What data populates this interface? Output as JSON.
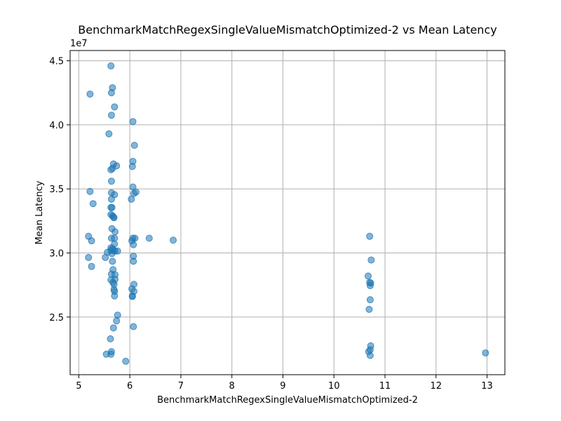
{
  "chart_data": {
    "type": "scatter",
    "title": "BenchmarkMatchRegexSingleValueMismatchOptimized-2 vs Mean Latency",
    "xlabel": "BenchmarkMatchRegexSingleValueMismatchOptimized-2",
    "ylabel": "Mean Latency",
    "y_offset_label": "1e7",
    "xlim": [
      4.83,
      13.35
    ],
    "ylim": [
      20500000,
      45800000
    ],
    "x_ticks": [
      5,
      6,
      7,
      8,
      9,
      10,
      11,
      12,
      13
    ],
    "x_tick_labels": [
      "5",
      "6",
      "7",
      "8",
      "9",
      "10",
      "11",
      "12",
      "13"
    ],
    "y_ticks": [
      25000000,
      30000000,
      35000000,
      40000000,
      45000000
    ],
    "y_tick_labels": [
      "2.5",
      "3.0",
      "3.5",
      "4.0",
      "4.5"
    ],
    "grid": true,
    "marker_color": "#1f77b4",
    "marker_alpha": 0.55,
    "points": [
      [
        5.63,
        44600000
      ],
      [
        5.66,
        42900000
      ],
      [
        5.22,
        42400000
      ],
      [
        5.64,
        42500000
      ],
      [
        5.7,
        41400000
      ],
      [
        5.64,
        40750000
      ],
      [
        6.06,
        40250000
      ],
      [
        5.59,
        39300000
      ],
      [
        6.09,
        38400000
      ],
      [
        5.68,
        36950000
      ],
      [
        6.06,
        37150000
      ],
      [
        5.74,
        36800000
      ],
      [
        6.05,
        36750000
      ],
      [
        5.66,
        36600000
      ],
      [
        5.63,
        36500000
      ],
      [
        5.64,
        35600000
      ],
      [
        6.06,
        35150000
      ],
      [
        5.22,
        34800000
      ],
      [
        6.12,
        34750000
      ],
      [
        5.64,
        34700000
      ],
      [
        5.7,
        34550000
      ],
      [
        6.08,
        34650000
      ],
      [
        6.03,
        34200000
      ],
      [
        5.64,
        34200000
      ],
      [
        5.28,
        33850000
      ],
      [
        5.63,
        33550000
      ],
      [
        5.65,
        33550000
      ],
      [
        5.63,
        33000000
      ],
      [
        5.66,
        32900000
      ],
      [
        5.68,
        32800000
      ],
      [
        5.69,
        32750000
      ],
      [
        5.65,
        31900000
      ],
      [
        5.71,
        31650000
      ],
      [
        5.19,
        31300000
      ],
      [
        5.64,
        31150000
      ],
      [
        6.06,
        31150000
      ],
      [
        6.1,
        31150000
      ],
      [
        6.38,
        31150000
      ],
      [
        6.85,
        31000000
      ],
      [
        5.25,
        30950000
      ],
      [
        5.7,
        31150000
      ],
      [
        6.04,
        30950000
      ],
      [
        6.07,
        30650000
      ],
      [
        5.7,
        30700000
      ],
      [
        5.63,
        30400000
      ],
      [
        5.66,
        30350000
      ],
      [
        5.63,
        30200000
      ],
      [
        5.56,
        30050000
      ],
      [
        5.68,
        30200000
      ],
      [
        5.71,
        30150000
      ],
      [
        5.76,
        30150000
      ],
      [
        5.65,
        29950000
      ],
      [
        6.07,
        29750000
      ],
      [
        5.52,
        29650000
      ],
      [
        5.19,
        29650000
      ],
      [
        5.66,
        29350000
      ],
      [
        6.07,
        29350000
      ],
      [
        5.25,
        28950000
      ],
      [
        5.67,
        28700000
      ],
      [
        5.64,
        28350000
      ],
      [
        5.71,
        28300000
      ],
      [
        5.63,
        27900000
      ],
      [
        5.71,
        27950000
      ],
      [
        5.67,
        27700000
      ],
      [
        5.69,
        27550000
      ],
      [
        6.08,
        27550000
      ],
      [
        6.04,
        27200000
      ],
      [
        5.69,
        27150000
      ],
      [
        5.7,
        27000000
      ],
      [
        6.08,
        27000000
      ],
      [
        6.05,
        26650000
      ],
      [
        5.7,
        26650000
      ],
      [
        6.05,
        26600000
      ],
      [
        5.76,
        25150000
      ],
      [
        5.74,
        24700000
      ],
      [
        5.68,
        24150000
      ],
      [
        6.07,
        24250000
      ],
      [
        5.62,
        23300000
      ],
      [
        5.64,
        22300000
      ],
      [
        5.54,
        22100000
      ],
      [
        5.63,
        22100000
      ],
      [
        5.92,
        21550000
      ],
      [
        10.7,
        31300000
      ],
      [
        10.73,
        29450000
      ],
      [
        10.67,
        28200000
      ],
      [
        10.7,
        27700000
      ],
      [
        10.72,
        27650000
      ],
      [
        10.71,
        27450000
      ],
      [
        10.71,
        26350000
      ],
      [
        10.69,
        25600000
      ],
      [
        10.72,
        22750000
      ],
      [
        10.68,
        22300000
      ],
      [
        10.71,
        22450000
      ],
      [
        10.71,
        22000000
      ],
      [
        12.97,
        22200000
      ]
    ]
  }
}
